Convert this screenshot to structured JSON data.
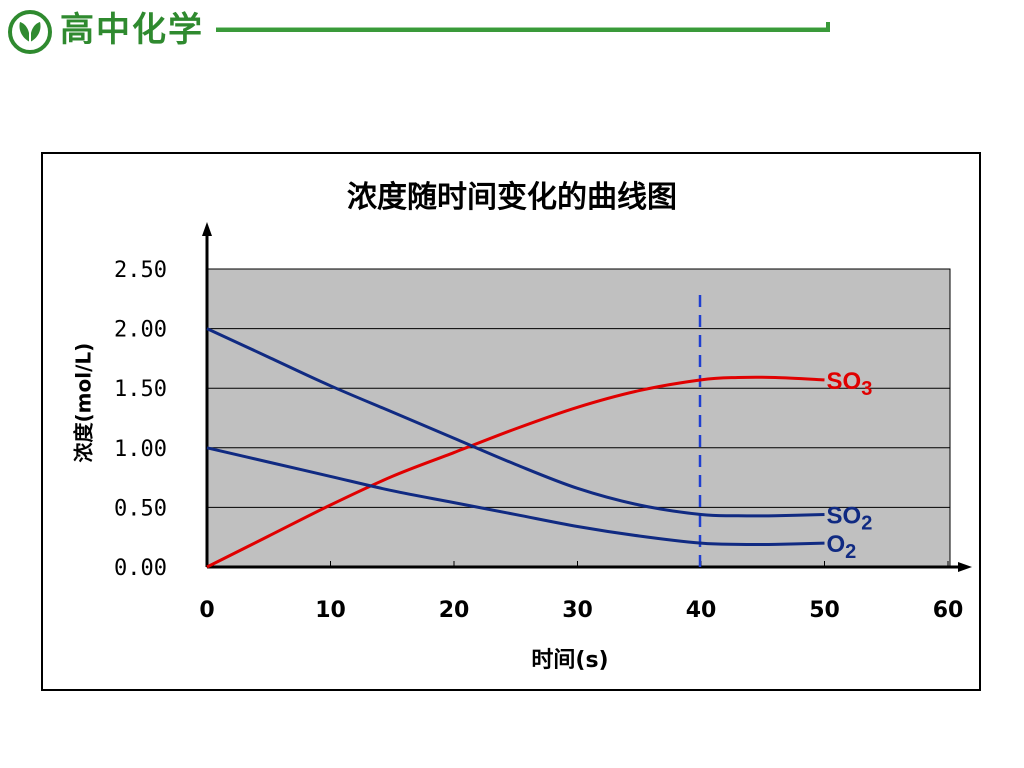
{
  "header": {
    "logo_icon": "leaf-emblem-icon",
    "title": "高中化学",
    "accent_color": "#2f8a2f"
  },
  "chart_data": {
    "type": "line",
    "title": "浓度随时间变化的曲线图",
    "xlabel": "时间(s)",
    "ylabel": "浓度(mol/L)",
    "xlim": [
      0,
      60
    ],
    "ylim": [
      0,
      2.5
    ],
    "x_ticks": [
      "0",
      "10",
      "20",
      "30",
      "40",
      "50",
      "60"
    ],
    "y_ticks": [
      "0.00",
      "0.50",
      "1.00",
      "1.50",
      "2.00",
      "2.50"
    ],
    "grid": true,
    "plot_background": "#c0c0c0",
    "marker_line": {
      "x": 40,
      "style": "dashed",
      "color": "#1f3fd0"
    },
    "series": [
      {
        "name": "SO3",
        "label_main": "SO",
        "label_sub": "3",
        "color": "#e00000",
        "points": [
          [
            0,
            0
          ],
          [
            5,
            0.26
          ],
          [
            10,
            0.52
          ],
          [
            15,
            0.76
          ],
          [
            20,
            0.96
          ],
          [
            25,
            1.16
          ],
          [
            30,
            1.34
          ],
          [
            35,
            1.48
          ],
          [
            40,
            1.57
          ],
          [
            43,
            1.59
          ],
          [
            46,
            1.59
          ],
          [
            50,
            1.57
          ]
        ]
      },
      {
        "name": "SO2",
        "label_main": "SO",
        "label_sub": "2",
        "color": "#102a82",
        "points": [
          [
            0,
            2.0
          ],
          [
            5,
            1.76
          ],
          [
            10,
            1.52
          ],
          [
            15,
            1.3
          ],
          [
            20,
            1.08
          ],
          [
            25,
            0.86
          ],
          [
            30,
            0.66
          ],
          [
            35,
            0.52
          ],
          [
            40,
            0.44
          ],
          [
            43,
            0.43
          ],
          [
            46,
            0.43
          ],
          [
            50,
            0.44
          ]
        ]
      },
      {
        "name": "O2",
        "label_main": "O",
        "label_sub": "2",
        "color": "#102a82",
        "points": [
          [
            0,
            1.0
          ],
          [
            5,
            0.88
          ],
          [
            10,
            0.76
          ],
          [
            15,
            0.64
          ],
          [
            20,
            0.54
          ],
          [
            25,
            0.44
          ],
          [
            30,
            0.34
          ],
          [
            35,
            0.26
          ],
          [
            40,
            0.2
          ],
          [
            43,
            0.19
          ],
          [
            46,
            0.19
          ],
          [
            50,
            0.2
          ]
        ]
      }
    ]
  }
}
